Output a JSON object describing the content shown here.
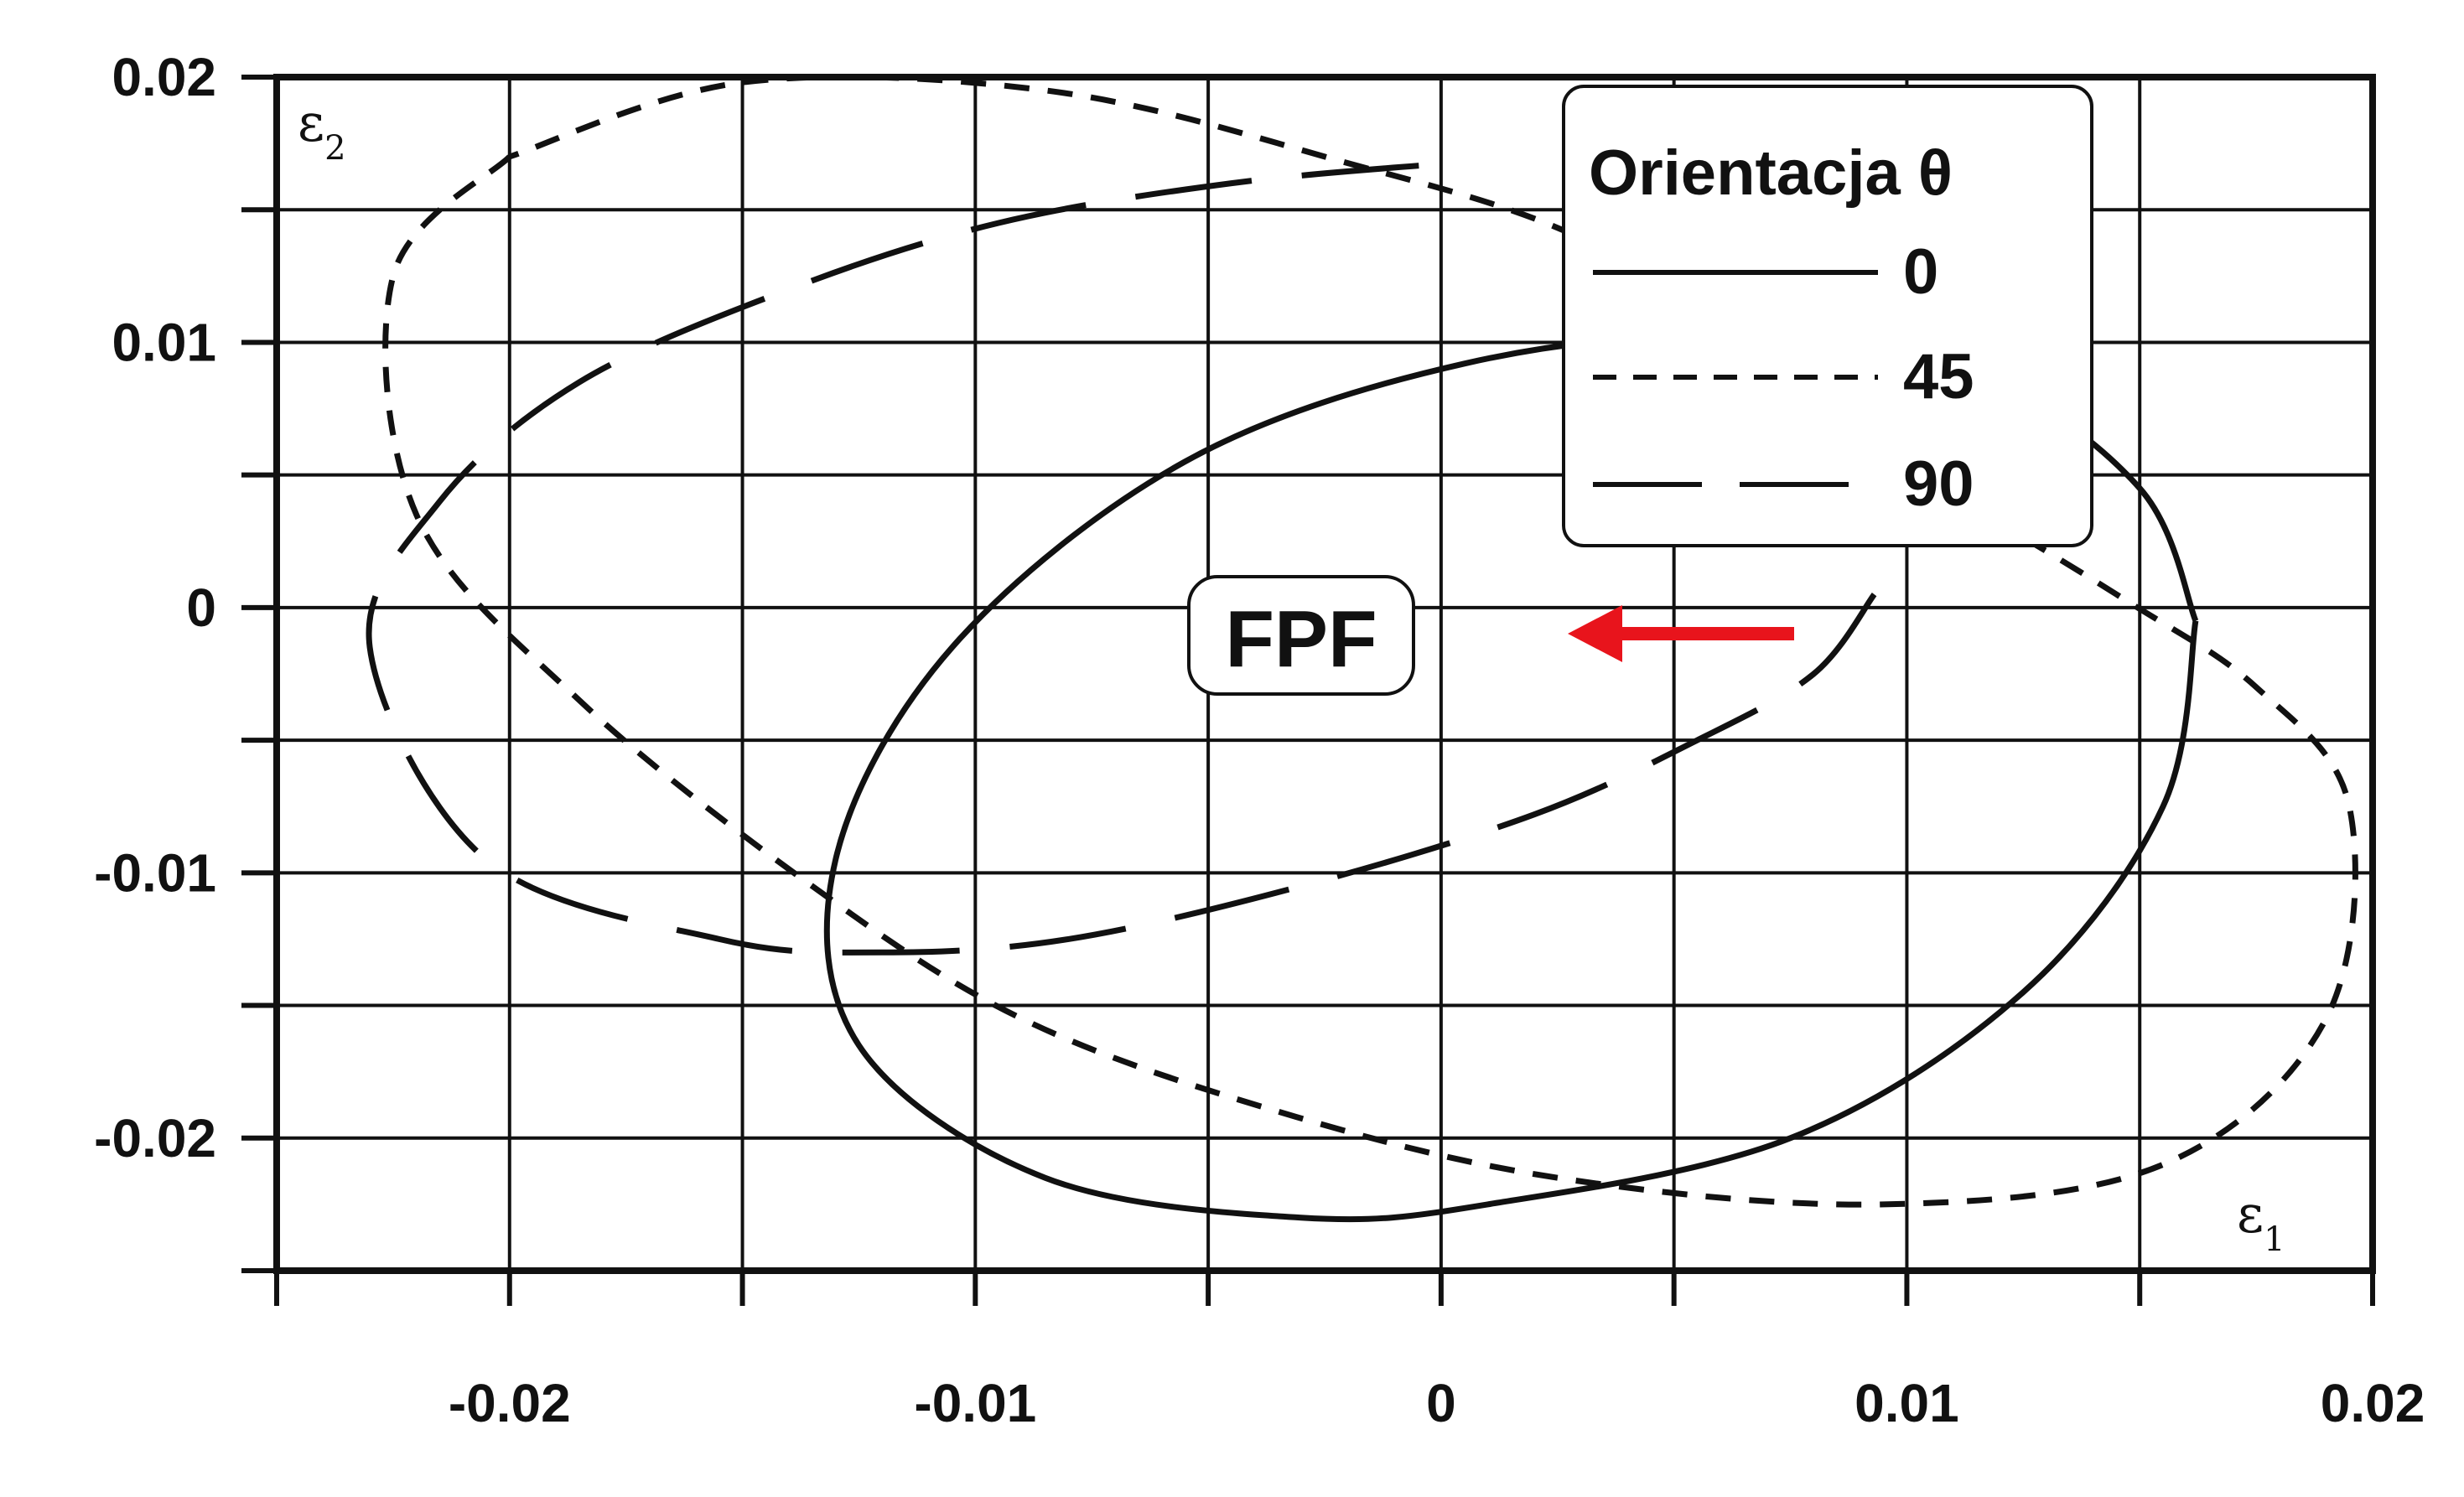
{
  "chart_data": {
    "type": "line",
    "xlabel": "ε",
    "xlabel_sub": "1",
    "ylabel": "ε",
    "ylabel_sub": "2",
    "xlim": [
      -0.025,
      0.02
    ],
    "ylim": [
      -0.025,
      0.02
    ],
    "x_ticks": [
      -0.02,
      -0.01,
      0,
      0.01,
      0.02
    ],
    "x_tick_labels": [
      "-0.02",
      "-0.01",
      "0",
      "0.01",
      "0.02"
    ],
    "y_ticks": [
      0.02,
      0.01,
      0,
      -0.01,
      -0.02
    ],
    "y_tick_labels": [
      "0.02",
      "0.01",
      "0",
      "-0.01",
      "-0.02"
    ],
    "grid": true,
    "legend": {
      "title": "Orientacja θ",
      "placement": "top-right",
      "items": [
        "0",
        "45",
        "90"
      ]
    },
    "annotation": {
      "text": "FPF",
      "arrow": "pointing left",
      "arrow_color": "#e8141c"
    },
    "series": [
      {
        "name": "0",
        "style": "solid",
        "points": [
          [
            0.0162,
            -0.0005
          ],
          [
            0.0155,
            -0.0075
          ],
          [
            0.0125,
            -0.0145
          ],
          [
            0.0075,
            -0.02
          ],
          [
            0.001,
            -0.0225
          ],
          [
            -0.003,
            -0.023
          ],
          [
            -0.0085,
            -0.0215
          ],
          [
            -0.0125,
            -0.0165
          ],
          [
            -0.013,
            -0.0095
          ],
          [
            -0.0105,
            -0.0015
          ],
          [
            -0.0055,
            0.0055
          ],
          [
            0.0005,
            0.0092
          ],
          [
            0.0065,
            0.0103
          ],
          [
            0.0115,
            0.0088
          ],
          [
            0.015,
            0.0045
          ],
          [
            0.0162,
            -0.0005
          ]
        ]
      },
      {
        "name": "45",
        "style": "dashed",
        "points": [
          [
            -0.02,
            0.017
          ],
          [
            -0.0225,
            0.0125
          ],
          [
            -0.022,
            0.0035
          ],
          [
            -0.0185,
            -0.0035
          ],
          [
            -0.0135,
            -0.0105
          ],
          [
            -0.009,
            -0.0155
          ],
          [
            -0.0035,
            -0.019
          ],
          [
            0.0025,
            -0.0215
          ],
          [
            0.0095,
            -0.0225
          ],
          [
            0.0155,
            -0.021
          ],
          [
            0.019,
            -0.0155
          ],
          [
            0.0195,
            -0.0075
          ],
          [
            0.0175,
            -0.003
          ],
          [
            0.0145,
            0.0005
          ],
          [
            0.009,
            0.0065
          ],
          [
            0.0035,
            0.0135
          ],
          [
            -0.0025,
            0.017
          ],
          [
            -0.0085,
            0.0195
          ],
          [
            -0.015,
            0.0198
          ],
          [
            -0.02,
            0.017
          ]
        ]
      },
      {
        "name": "90",
        "style": "long-dash",
        "points": [
          [
            0.0093,
            0.0005
          ],
          [
            0.008,
            -0.0025
          ],
          [
            0.0055,
            -0.005
          ],
          [
            0.002,
            -0.0078
          ],
          [
            -0.003,
            -0.0105
          ],
          [
            -0.008,
            -0.0125
          ],
          [
            -0.012,
            -0.013
          ],
          [
            -0.0155,
            -0.0125
          ],
          [
            -0.0205,
            -0.0095
          ],
          [
            -0.023,
            -0.0015
          ],
          [
            -0.0215,
            0.004
          ],
          [
            -0.0185,
            0.0085
          ],
          [
            -0.014,
            0.012
          ],
          [
            -0.0095,
            0.0145
          ],
          [
            -0.0045,
            0.016
          ],
          [
            0.0005,
            0.0168
          ]
        ]
      }
    ]
  }
}
